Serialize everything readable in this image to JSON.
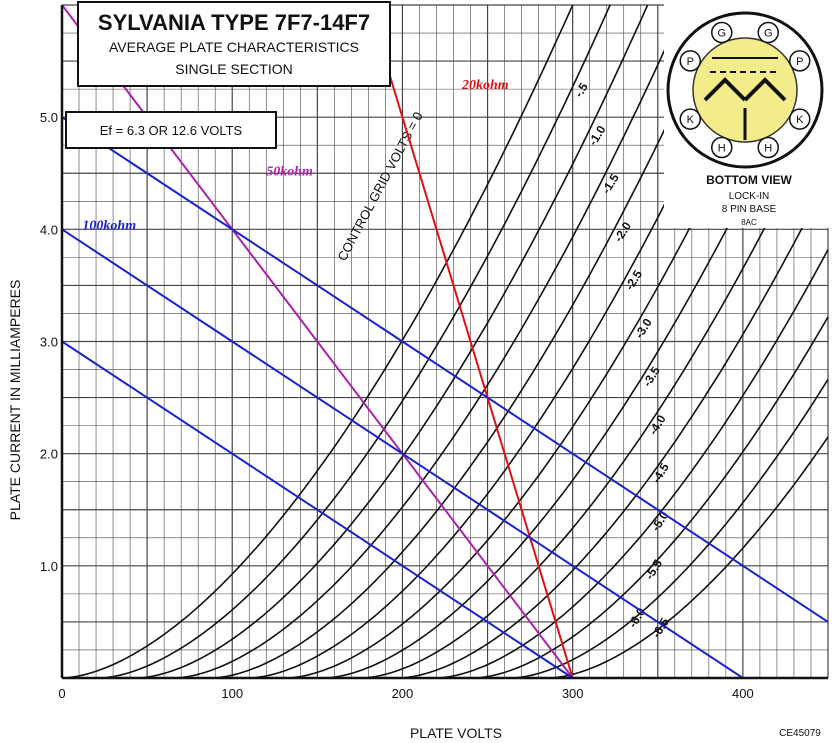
{
  "chart_data": {
    "type": "line",
    "title": "SYLVANIA TYPE  7F7-14F7",
    "subtitle_1": "AVERAGE PLATE CHARACTERISTICS",
    "subtitle_2": "SINGLE SECTION",
    "heater_note": "Ef = 6.3 OR 12.6 VOLTS",
    "xlabel": "PLATE VOLTS",
    "ylabel": "PLATE CURRENT IN MILLIAMPERES",
    "xlim": [
      0,
      450
    ],
    "ylim": [
      0,
      6.0
    ],
    "x_ticks": [
      {
        "value": 0,
        "label": "0"
      },
      {
        "value": 100,
        "label": "100"
      },
      {
        "value": 200,
        "label": "200"
      },
      {
        "value": 300,
        "label": "300"
      },
      {
        "value": 400,
        "label": "400"
      }
    ],
    "y_ticks": [
      {
        "value": 1.0,
        "label": "1.0"
      },
      {
        "value": 2.0,
        "label": "2.0"
      },
      {
        "value": 3.0,
        "label": "3.0"
      },
      {
        "value": 4.0,
        "label": "4.0"
      },
      {
        "value": 5.0,
        "label": "5.0"
      }
    ],
    "grid": true,
    "grid_step_x": 10,
    "grid_step_y": 0.25,
    "grid_label": "CONTROL GRID VOLTS = 0",
    "curve_model": {
      "start_spacing_volts": 22,
      "rise_volts": 300,
      "exponent": 1.7
    },
    "series": [
      {
        "name": "0",
        "grid_volts": 0
      },
      {
        "name": "-.5",
        "grid_volts": -0.5
      },
      {
        "name": "-1.0",
        "grid_volts": -1.0
      },
      {
        "name": "-1.5",
        "grid_volts": -1.5
      },
      {
        "name": "-2.0",
        "grid_volts": -2.0
      },
      {
        "name": "-2.5",
        "grid_volts": -2.5
      },
      {
        "name": "-3.0",
        "grid_volts": -3.0
      },
      {
        "name": "-3.5",
        "grid_volts": -3.5
      },
      {
        "name": "-4.0",
        "grid_volts": -4.0
      },
      {
        "name": "-4.5",
        "grid_volts": -4.5
      },
      {
        "name": "-5.0",
        "grid_volts": -5.0
      },
      {
        "name": "-5.5",
        "grid_volts": -5.5
      },
      {
        "name": "-6.0",
        "grid_volts": -6.0
      },
      {
        "name": "-6.5",
        "grid_volts": -6.5
      }
    ],
    "load_lines": [
      {
        "name": "20kohm",
        "label": "20kohm",
        "color": "#dd1111",
        "points": [
          [
            180,
            6.0
          ],
          [
            300,
            0
          ]
        ],
        "label_at": [
          235,
          5.25
        ]
      },
      {
        "name": "50kohm",
        "label": "50kohm",
        "color": "#aa22aa",
        "points": [
          [
            0,
            6.0
          ],
          [
            300,
            0
          ]
        ],
        "label_at": [
          120,
          4.48
        ]
      },
      {
        "name": "100kohm",
        "label": "100kohm",
        "color": "#1a22cc",
        "points": [
          [
            0,
            4.0
          ],
          [
            400,
            0
          ]
        ],
        "label_at": [
          12,
          4.0
        ]
      },
      {
        "name": "blue-line-5ma",
        "label": "",
        "color": "#1a22cc",
        "points": [
          [
            0,
            5.0
          ],
          [
            450,
            0.5
          ]
        ]
      },
      {
        "name": "blue-line-3ma",
        "label": "",
        "color": "#1a22cc",
        "points": [
          [
            0,
            3.0
          ],
          [
            300,
            0
          ]
        ]
      }
    ],
    "base_diagram": {
      "caption_1": "BOTTOM VIEW",
      "caption_2": "LOCK-IN",
      "caption_3": "8 PIN BASE",
      "caption_4": "8AC",
      "pins": [
        "G",
        "G",
        "P",
        "P",
        "K",
        "K",
        "H",
        "H"
      ]
    },
    "catalog_code": "CE45079"
  }
}
